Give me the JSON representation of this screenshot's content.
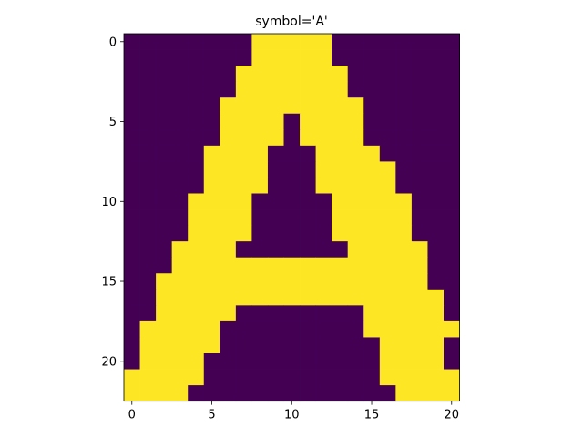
{
  "chart_data": {
    "type": "heatmap",
    "title": "symbol='A'",
    "xlabel": "",
    "ylabel": "",
    "x_ticks": [
      0,
      5,
      10,
      15,
      20
    ],
    "y_ticks": [
      0,
      5,
      10,
      15,
      20
    ],
    "x_tick_labels": [
      "0",
      "5",
      "10",
      "15",
      "20"
    ],
    "y_tick_labels": [
      "0",
      "5",
      "10",
      "15",
      "20"
    ],
    "xlim": [
      -0.5,
      20.5
    ],
    "ylim": [
      22.5,
      -0.5
    ],
    "grid": false,
    "colormap": "viridis",
    "colors": {
      "0": "#440154",
      "1": "#fde725"
    },
    "matrix": [
      [
        0,
        0,
        0,
        0,
        0,
        0,
        0,
        0,
        1,
        1,
        1,
        1,
        1,
        0,
        0,
        0,
        0,
        0,
        0,
        0,
        0
      ],
      [
        0,
        0,
        0,
        0,
        0,
        0,
        0,
        0,
        1,
        1,
        1,
        1,
        1,
        0,
        0,
        0,
        0,
        0,
        0,
        0,
        0
      ],
      [
        0,
        0,
        0,
        0,
        0,
        0,
        0,
        1,
        1,
        1,
        1,
        1,
        1,
        1,
        0,
        0,
        0,
        0,
        0,
        0,
        0
      ],
      [
        0,
        0,
        0,
        0,
        0,
        0,
        0,
        1,
        1,
        1,
        1,
        1,
        1,
        1,
        0,
        0,
        0,
        0,
        0,
        0,
        0
      ],
      [
        0,
        0,
        0,
        0,
        0,
        0,
        1,
        1,
        1,
        1,
        1,
        1,
        1,
        1,
        1,
        0,
        0,
        0,
        0,
        0,
        0
      ],
      [
        0,
        0,
        0,
        0,
        0,
        0,
        1,
        1,
        1,
        1,
        0,
        1,
        1,
        1,
        1,
        0,
        0,
        0,
        0,
        0,
        0
      ],
      [
        0,
        0,
        0,
        0,
        0,
        0,
        1,
        1,
        1,
        1,
        0,
        1,
        1,
        1,
        1,
        0,
        0,
        0,
        0,
        0,
        0
      ],
      [
        0,
        0,
        0,
        0,
        0,
        1,
        1,
        1,
        1,
        0,
        0,
        0,
        1,
        1,
        1,
        1,
        0,
        0,
        0,
        0,
        0
      ],
      [
        0,
        0,
        0,
        0,
        0,
        1,
        1,
        1,
        1,
        0,
        0,
        0,
        1,
        1,
        1,
        1,
        1,
        0,
        0,
        0,
        0
      ],
      [
        0,
        0,
        0,
        0,
        0,
        1,
        1,
        1,
        1,
        0,
        0,
        0,
        1,
        1,
        1,
        1,
        1,
        0,
        0,
        0,
        0
      ],
      [
        0,
        0,
        0,
        0,
        1,
        1,
        1,
        1,
        0,
        0,
        0,
        0,
        0,
        1,
        1,
        1,
        1,
        1,
        0,
        0,
        0
      ],
      [
        0,
        0,
        0,
        0,
        1,
        1,
        1,
        1,
        0,
        0,
        0,
        0,
        0,
        1,
        1,
        1,
        1,
        1,
        0,
        0,
        0
      ],
      [
        0,
        0,
        0,
        0,
        1,
        1,
        1,
        1,
        0,
        0,
        0,
        0,
        0,
        1,
        1,
        1,
        1,
        1,
        0,
        0,
        0
      ],
      [
        0,
        0,
        0,
        1,
        1,
        1,
        1,
        0,
        0,
        0,
        0,
        0,
        0,
        0,
        1,
        1,
        1,
        1,
        1,
        0,
        0
      ],
      [
        0,
        0,
        0,
        1,
        1,
        1,
        1,
        1,
        1,
        1,
        1,
        1,
        1,
        1,
        1,
        1,
        1,
        1,
        1,
        0,
        0
      ],
      [
        0,
        0,
        1,
        1,
        1,
        1,
        1,
        1,
        1,
        1,
        1,
        1,
        1,
        1,
        1,
        1,
        1,
        1,
        1,
        0,
        0
      ],
      [
        0,
        0,
        1,
        1,
        1,
        1,
        1,
        1,
        1,
        1,
        1,
        1,
        1,
        1,
        1,
        1,
        1,
        1,
        1,
        1,
        0
      ],
      [
        0,
        0,
        1,
        1,
        1,
        1,
        1,
        0,
        0,
        0,
        0,
        0,
        0,
        0,
        0,
        1,
        1,
        1,
        1,
        1,
        0
      ],
      [
        0,
        1,
        1,
        1,
        1,
        1,
        0,
        0,
        0,
        0,
        0,
        0,
        0,
        0,
        0,
        1,
        1,
        1,
        1,
        1,
        1
      ],
      [
        0,
        1,
        1,
        1,
        1,
        1,
        0,
        0,
        0,
        0,
        0,
        0,
        0,
        0,
        0,
        0,
        1,
        1,
        1,
        1,
        0
      ],
      [
        0,
        1,
        1,
        1,
        1,
        0,
        0,
        0,
        0,
        0,
        0,
        0,
        0,
        0,
        0,
        0,
        1,
        1,
        1,
        1,
        0
      ],
      [
        1,
        1,
        1,
        1,
        1,
        0,
        0,
        0,
        0,
        0,
        0,
        0,
        0,
        0,
        0,
        0,
        1,
        1,
        1,
        1,
        1
      ],
      [
        1,
        1,
        1,
        1,
        0,
        0,
        0,
        0,
        0,
        0,
        0,
        0,
        0,
        0,
        0,
        0,
        0,
        1,
        1,
        1,
        1
      ]
    ]
  }
}
